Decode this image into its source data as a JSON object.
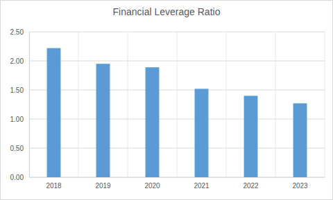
{
  "chart_data": {
    "type": "bar",
    "title": "Financial Leverage Ratio",
    "categories": [
      "2018",
      "2019",
      "2020",
      "2021",
      "2022",
      "2023"
    ],
    "values": [
      2.22,
      1.95,
      1.89,
      1.52,
      1.4,
      1.27
    ],
    "color": "#5b9bd5",
    "ylim": [
      0,
      2.5
    ],
    "yticks": [
      {
        "value": 0,
        "label": "0.00"
      },
      {
        "value": 0.5,
        "label": "0.50"
      },
      {
        "value": 1,
        "label": "1.00"
      },
      {
        "value": 1.5,
        "label": "1.50"
      },
      {
        "value": 2,
        "label": "2.00"
      },
      {
        "value": 2.5,
        "label": "2.50"
      }
    ],
    "grid": true
  }
}
